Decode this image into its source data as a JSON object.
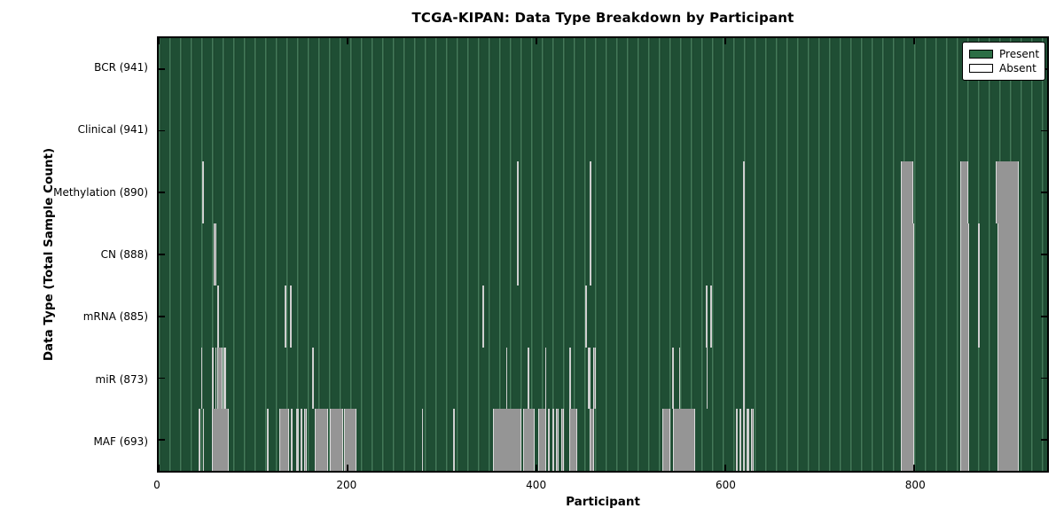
{
  "title": "TCGA-KIPAN: Data Type Breakdown by Participant",
  "chart_data": {
    "type": "heatmap",
    "title": "TCGA-KIPAN: Data Type Breakdown by Participant",
    "xlabel": "Participant",
    "ylabel": "Data Type (Total Sample Count)",
    "x_range": [
      0,
      941
    ],
    "x_ticks": [
      "0",
      "200",
      "400",
      "600",
      "800"
    ],
    "x_tick_values": [
      0,
      200,
      400,
      600,
      800
    ],
    "grid": "vertical-stripes",
    "legend_position": "upper-right",
    "legend_items": [
      {
        "label": "Present",
        "color": "#2c6e45"
      },
      {
        "label": "Absent",
        "color": "#ffffff"
      }
    ],
    "colors": {
      "present": "#2c6e45",
      "absent": "#ffffff",
      "absent_rendered": "#959595",
      "plot_background": "#1f4e34",
      "stripe": "#9adcaf",
      "row_divider": "#123726"
    },
    "rows": [
      {
        "name": "BCR",
        "label": "BCR (941)",
        "total": 941,
        "absent_ranges": []
      },
      {
        "name": "Clinical",
        "label": "Clinical (941)",
        "total": 941,
        "absent_ranges": []
      },
      {
        "name": "Methylation",
        "label": "Methylation (890)",
        "total": 890,
        "absent_ranges": [
          [
            46,
            48
          ],
          [
            379,
            381
          ],
          [
            456,
            458
          ],
          [
            619,
            621
          ],
          [
            786,
            799
          ],
          [
            849,
            857
          ],
          [
            887,
            911
          ]
        ]
      },
      {
        "name": "CN",
        "label": "CN (888)",
        "total": 888,
        "absent_ranges": [
          [
            58,
            61
          ],
          [
            379,
            381
          ],
          [
            456,
            458
          ],
          [
            619,
            621
          ],
          [
            786,
            800
          ],
          [
            849,
            858
          ],
          [
            868,
            870
          ],
          [
            888,
            911
          ]
        ]
      },
      {
        "name": "mRNA",
        "label": "mRNA (885)",
        "total": 885,
        "absent_ranges": [
          [
            62,
            64
          ],
          [
            133,
            135
          ],
          [
            139,
            141
          ],
          [
            343,
            345
          ],
          [
            452,
            454
          ],
          [
            579,
            581
          ],
          [
            584,
            586
          ],
          [
            619,
            621
          ],
          [
            786,
            800
          ],
          [
            849,
            858
          ],
          [
            868,
            870
          ],
          [
            888,
            911
          ]
        ]
      },
      {
        "name": "miR",
        "label": "miR (873)",
        "total": 873,
        "absent_ranges": [
          [
            45,
            46
          ],
          [
            56,
            58
          ],
          [
            60,
            61
          ],
          [
            62,
            68
          ],
          [
            69,
            71
          ],
          [
            162,
            164
          ],
          [
            368,
            369
          ],
          [
            391,
            392
          ],
          [
            409,
            410
          ],
          [
            435,
            436
          ],
          [
            455,
            457
          ],
          [
            460,
            463
          ],
          [
            544,
            545
          ],
          [
            551,
            552
          ],
          [
            580,
            581
          ],
          [
            619,
            621
          ],
          [
            786,
            800
          ],
          [
            849,
            858
          ],
          [
            888,
            911
          ]
        ]
      },
      {
        "name": "MAF",
        "label": "MAF (693)",
        "total": 693,
        "absent_ranges": [
          [
            42,
            44
          ],
          [
            47,
            48
          ],
          [
            56,
            74
          ],
          [
            115,
            116
          ],
          [
            128,
            138
          ],
          [
            140,
            142
          ],
          [
            146,
            148
          ],
          [
            150,
            152
          ],
          [
            154,
            157
          ],
          [
            165,
            179
          ],
          [
            181,
            195
          ],
          [
            196,
            209
          ],
          [
            279,
            280
          ],
          [
            312,
            314
          ],
          [
            354,
            384
          ],
          [
            386,
            398
          ],
          [
            402,
            410
          ],
          [
            412,
            414
          ],
          [
            417,
            419
          ],
          [
            421,
            424
          ],
          [
            426,
            429
          ],
          [
            435,
            443
          ],
          [
            456,
            461
          ],
          [
            533,
            542
          ],
          [
            545,
            568
          ],
          [
            611,
            613
          ],
          [
            615,
            617
          ],
          [
            619,
            621
          ],
          [
            623,
            625
          ],
          [
            627,
            630
          ],
          [
            786,
            800
          ],
          [
            849,
            858
          ],
          [
            888,
            911
          ]
        ]
      }
    ]
  }
}
